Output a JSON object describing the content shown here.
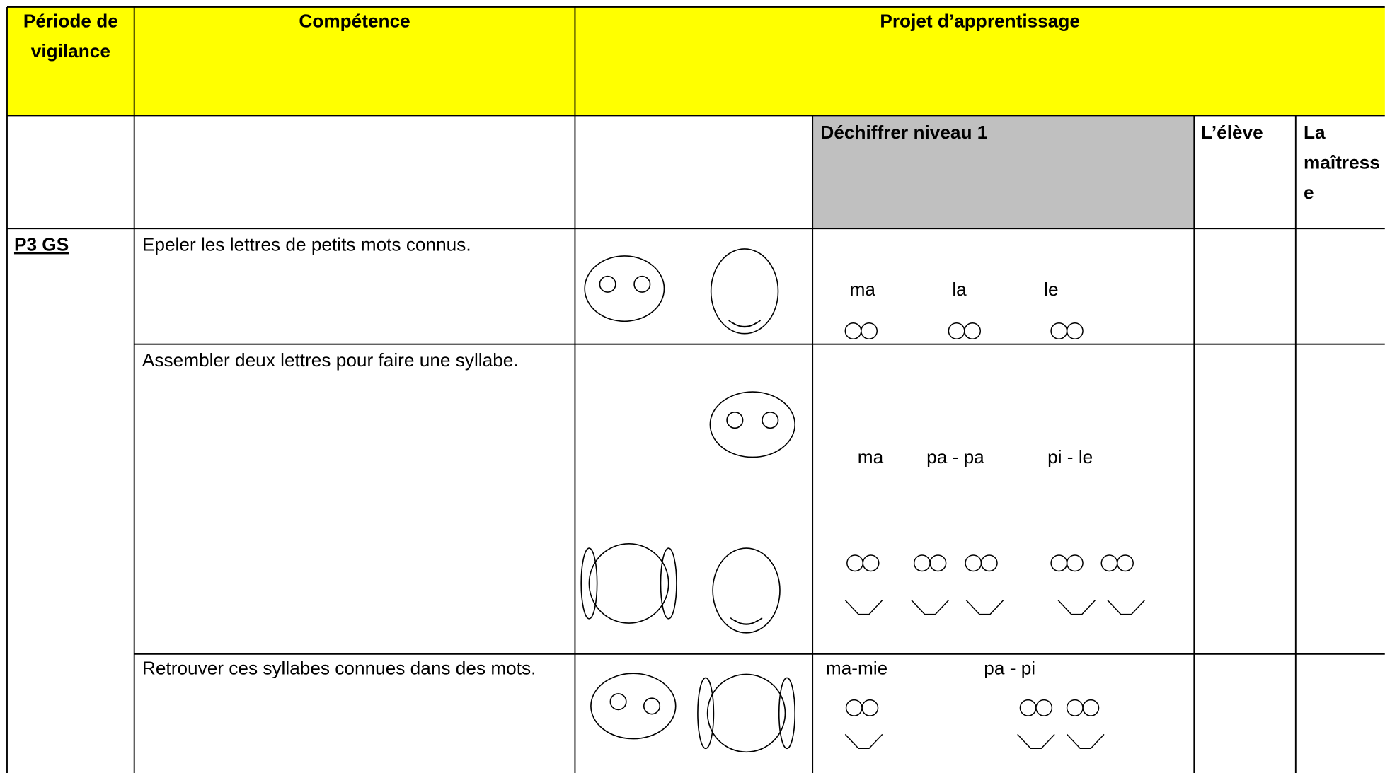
{
  "table": {
    "header": [
      "Période de vigilance",
      "Compétence",
      "Projet d’apprentissage"
    ],
    "subheader": {
      "title": "Déchiffrer niveau 1",
      "student": "L’élève",
      "teacher": "La maîtresse"
    },
    "period": "P3 GS",
    "rows": [
      {
        "competence": "Epeler les lettres de petits mots connus.",
        "words": [
          "ma",
          "la",
          "le"
        ]
      },
      {
        "competence": "Assembler deux lettres pour faire une syllabe.",
        "words": [
          "ma",
          "pa - pa",
          "pi - le"
        ]
      },
      {
        "competence": "Retrouver ces syllabes connues dans des mots.",
        "words": [
          "ma-mie",
          "pa - pi"
        ]
      }
    ]
  }
}
